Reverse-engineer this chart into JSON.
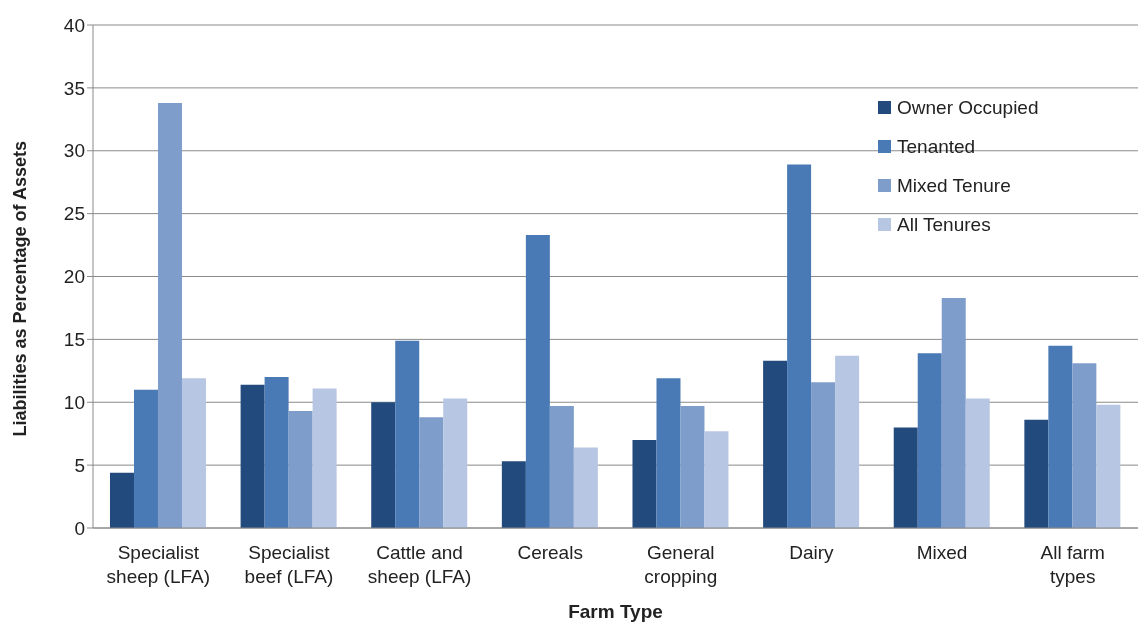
{
  "chart_data": {
    "type": "bar",
    "xlabel": "Farm Type",
    "ylabel": "Liabilities as Percentage of Assets",
    "categories": [
      "Specialist sheep (LFA)",
      "Specialist beef (LFA)",
      "Cattle and sheep (LFA)",
      "Cereals",
      "General cropping",
      "Dairy",
      "Mixed",
      "All farm types"
    ],
    "series": [
      {
        "name": "Owner Occupied",
        "color": "#234a7c",
        "values": [
          4.4,
          11.4,
          10.0,
          5.3,
          7.0,
          13.3,
          8.0,
          8.6
        ]
      },
      {
        "name": "Tenanted",
        "color": "#4a7ab5",
        "values": [
          11.0,
          12.0,
          14.9,
          23.3,
          11.9,
          28.9,
          13.9,
          14.5
        ]
      },
      {
        "name": "Mixed Tenure",
        "color": "#7f9dca",
        "values": [
          33.8,
          9.3,
          8.8,
          9.7,
          9.7,
          11.6,
          18.3,
          13.1
        ]
      },
      {
        "name": "All Tenures",
        "color": "#b7c6e2",
        "values": [
          11.9,
          11.1,
          10.3,
          6.4,
          7.7,
          13.7,
          10.3,
          9.8
        ]
      }
    ],
    "ylim": [
      0,
      40
    ],
    "yticks": [
      0,
      5,
      10,
      15,
      20,
      25,
      30,
      35,
      40
    ],
    "grid": "y",
    "legend": "top right"
  }
}
